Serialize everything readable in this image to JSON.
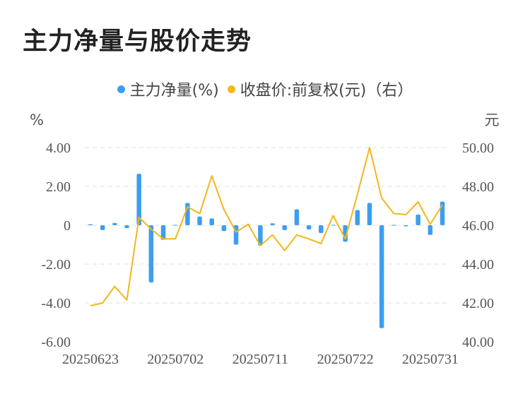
{
  "title": "主力净量与股价走势",
  "legend": {
    "series1": "主力净量(%)",
    "series2": "收盘价:前复权(元)（右）"
  },
  "colors": {
    "bar": "#3d9ef0",
    "line": "#f5b619",
    "grid": "#e2e2e2"
  },
  "chart_data": {
    "type": "bar",
    "title": "主力净量与股价走势",
    "left_unit": "%",
    "right_unit": "元",
    "ylim_left": [
      -6,
      4
    ],
    "ylim_right": [
      40,
      50
    ],
    "left_ticks": [
      "4.00",
      "2.00",
      "0",
      "-2.00",
      "-4.00",
      "-6.00"
    ],
    "right_ticks": [
      "50.00",
      "48.00",
      "46.00",
      "44.00",
      "42.00",
      "40.00"
    ],
    "x_tick_labels": [
      "20250623",
      "20250702",
      "20250711",
      "20250722",
      "20250731"
    ],
    "x_tick_indices": [
      0,
      7,
      14,
      21,
      28
    ],
    "series": [
      {
        "name": "主力净量(%)",
        "type": "bar",
        "axis": "left",
        "values": [
          0.05,
          -0.25,
          0.12,
          -0.15,
          2.65,
          -2.95,
          -0.75,
          0.02,
          1.15,
          0.45,
          0.35,
          -0.3,
          -1.0,
          0.02,
          -1.05,
          0.1,
          -0.25,
          0.82,
          -0.22,
          -0.4,
          0.02,
          -0.85,
          0.78,
          1.15,
          -5.3,
          0.03,
          -0.05,
          0.55,
          -0.5,
          1.22
        ]
      },
      {
        "name": "收盘价:前复权(元)（右）",
        "type": "line",
        "axis": "right",
        "values": [
          41.85,
          42.0,
          42.85,
          42.15,
          46.4,
          45.8,
          45.3,
          45.3,
          46.95,
          46.6,
          48.55,
          46.8,
          45.65,
          46.05,
          44.95,
          45.5,
          44.7,
          45.5,
          45.3,
          45.05,
          46.5,
          45.3,
          47.6,
          50.0,
          47.4,
          46.6,
          46.55,
          47.2,
          46.05,
          47.05
        ]
      }
    ]
  }
}
